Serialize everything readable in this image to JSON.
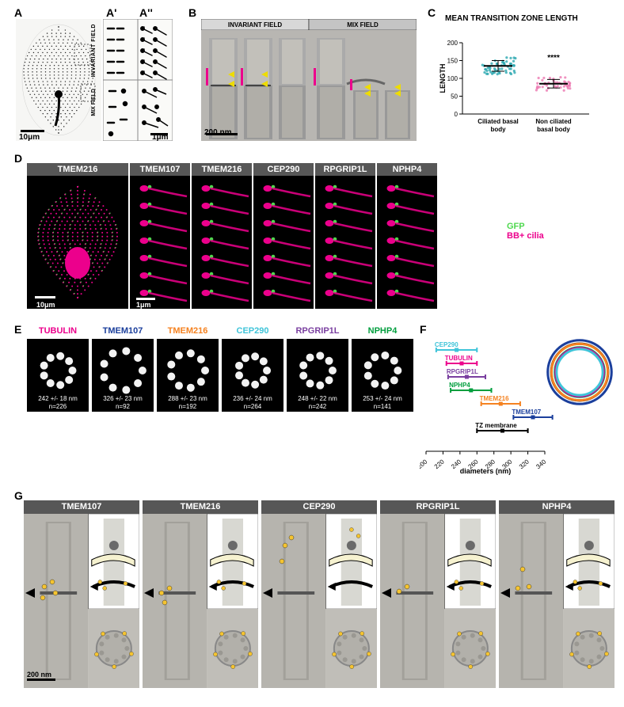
{
  "panelA": {
    "label": "A",
    "sub1": "A'",
    "sub2": "A''",
    "field1": "INVARIANT FIELD",
    "field2": "MIX FIELD",
    "scale1": "10μm",
    "scale2": "1μm"
  },
  "panelB": {
    "label": "B",
    "field1": "INVARIANT FIELD",
    "field2": "MIX FIELD",
    "scale": "200 nm",
    "arrow_pink": "#ec008c",
    "arrow_yellow": "#fff200"
  },
  "panelC": {
    "label": "C",
    "title": "MEAN TRANSITION ZONE LENGTH",
    "ylabel": "LENGTH",
    "ylim": [
      0,
      200
    ],
    "yticks": [
      0,
      50,
      100,
      150,
      200
    ],
    "cat1": "Ciliated basal\nbody",
    "cat2": "Non ciliated\nbasal body",
    "mean1": 135,
    "sd1": 15,
    "mean2": 85,
    "sd2": 12,
    "sig": "****",
    "color1": "#2aa8b0",
    "color2": "#ec79b1",
    "title_fontsize": 11,
    "label_fontsize": 10
  },
  "panelD": {
    "label": "D",
    "proteins": [
      "TMEM216",
      "TMEM107",
      "TMEM216",
      "CEP290",
      "RPGRIP1L",
      "NPHP4"
    ],
    "legend1": "GFP",
    "legend2": "BB+ cilia",
    "legend1_color": "#4fd84f",
    "legend2_color": "#ec008c",
    "scale1": "10μm",
    "scale2": "1μm"
  },
  "panelE": {
    "label": "E",
    "items": [
      {
        "name": "TUBULIN",
        "color": "#ec008c",
        "diam": "242 +/- 18 nm",
        "n": "n=226",
        "d": 242,
        "sd": 18
      },
      {
        "name": "TMEM107",
        "color": "#1b3f9c",
        "diam": "326 +/- 23 nm",
        "n": "n=92",
        "d": 326,
        "sd": 23
      },
      {
        "name": "TMEM216",
        "color": "#f58220",
        "diam": "288 +/- 23 nm",
        "n": "n=192",
        "d": 288,
        "sd": 23
      },
      {
        "name": "CEP290",
        "color": "#3fc4d9",
        "diam": "236 +/- 24 nm",
        "n": "n=264",
        "d": 236,
        "sd": 24
      },
      {
        "name": "RPGRIP1L",
        "color": "#7a3fa0",
        "diam": "248 +/- 22 nm",
        "n": "n=242",
        "d": 248,
        "sd": 22
      },
      {
        "name": "NPHP4",
        "color": "#009e3d",
        "diam": "253 +/- 24 nm",
        "n": "n=141",
        "d": 253,
        "sd": 24
      }
    ]
  },
  "panelF": {
    "label": "F",
    "xlabel": "diameters (nm)",
    "xlim": [
      200,
      340
    ],
    "xticks": [
      200,
      220,
      240,
      260,
      280,
      300,
      320,
      340
    ],
    "series": [
      {
        "name": "CEP290",
        "color": "#3fc4d9",
        "d": 236,
        "sd": 24,
        "y": 6
      },
      {
        "name": "TUBULIN",
        "color": "#ec008c",
        "d": 242,
        "sd": 18,
        "y": 5
      },
      {
        "name": "RPGRIP1L",
        "color": "#7a3fa0",
        "d": 248,
        "sd": 22,
        "y": 4
      },
      {
        "name": "NPHP4",
        "color": "#009e3d",
        "d": 253,
        "sd": 24,
        "y": 3
      },
      {
        "name": "TMEM216",
        "color": "#f58220",
        "d": 288,
        "sd": 23,
        "y": 2
      },
      {
        "name": "TMEM107",
        "color": "#1b3f9c",
        "d": 326,
        "sd": 23,
        "y": 1
      },
      {
        "name": "TZ membrane",
        "color": "#000000",
        "d": 290,
        "sd": 30,
        "y": 0
      }
    ]
  },
  "panelG": {
    "label": "G",
    "proteins": [
      "TMEM107",
      "TMEM216",
      "CEP290",
      "RPGRIP1L",
      "NPHP4"
    ],
    "scale": "200 nm",
    "gold": "#f5c430"
  }
}
